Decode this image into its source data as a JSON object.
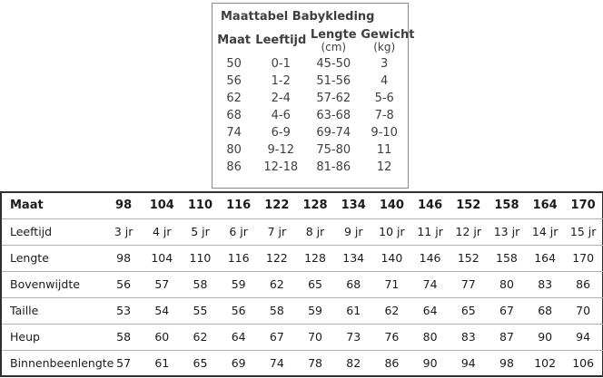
{
  "baby_table": {
    "title": "Maattabel Babykleding",
    "headers": [
      {
        "label": "Maat",
        "sub": ""
      },
      {
        "label": "Leeftijd",
        "sub": ""
      },
      {
        "label": "Lengte",
        "sub": "(cm)"
      },
      {
        "label": "Gewicht",
        "sub": "(kg)"
      }
    ],
    "rows": [
      [
        "50",
        "0-1",
        "45-50",
        "3"
      ],
      [
        "56",
        "1-2",
        "51-56",
        "4"
      ],
      [
        "62",
        "2-4",
        "57-62",
        "5-6"
      ],
      [
        "68",
        "4-6",
        "63-68",
        "7-8"
      ],
      [
        "74",
        "6-9",
        "69-74",
        "9-10"
      ],
      [
        "80",
        "9-12",
        "75-80",
        "11"
      ],
      [
        "86",
        "12-18",
        "81-86",
        "12"
      ]
    ]
  },
  "kids_table": {
    "header_label": "Maat",
    "header_values": [
      "98",
      "104",
      "110",
      "116",
      "122",
      "128",
      "134",
      "140",
      "146",
      "152",
      "158",
      "164",
      "170"
    ],
    "rows": [
      {
        "label": "Leeftijd",
        "values": [
          "3 jr",
          "4 jr",
          "5 jr",
          "6 jr",
          "7 jr",
          "8 jr",
          "9 jr",
          "10 jr",
          "11 jr",
          "12 jr",
          "13 jr",
          "14 jr",
          "15 jr"
        ]
      },
      {
        "label": "Lengte",
        "values": [
          "98",
          "104",
          "110",
          "116",
          "122",
          "128",
          "134",
          "140",
          "146",
          "152",
          "158",
          "164",
          "170"
        ]
      },
      {
        "label": "Bovenwijdte",
        "values": [
          "56",
          "57",
          "58",
          "59",
          "62",
          "65",
          "68",
          "71",
          "74",
          "77",
          "80",
          "83",
          "86"
        ]
      },
      {
        "label": "Taille",
        "values": [
          "53",
          "54",
          "55",
          "56",
          "58",
          "59",
          "61",
          "62",
          "64",
          "65",
          "67",
          "68",
          "70"
        ]
      },
      {
        "label": "Heup",
        "values": [
          "58",
          "60",
          "62",
          "64",
          "67",
          "70",
          "73",
          "76",
          "80",
          "83",
          "87",
          "90",
          "94"
        ]
      },
      {
        "label": "Binnenbeenlengte",
        "values": [
          "57",
          "61",
          "65",
          "69",
          "74",
          "78",
          "82",
          "86",
          "90",
          "94",
          "98",
          "102",
          "106"
        ]
      }
    ]
  },
  "colors": {
    "background": "#ffffff",
    "baby_text": "#3f3f3f",
    "baby_border": "#8a8a8a",
    "kids_text": "#1b1b1b",
    "kids_outer_border": "#2e2e2e",
    "kids_row_line": "#b2b2b2"
  }
}
